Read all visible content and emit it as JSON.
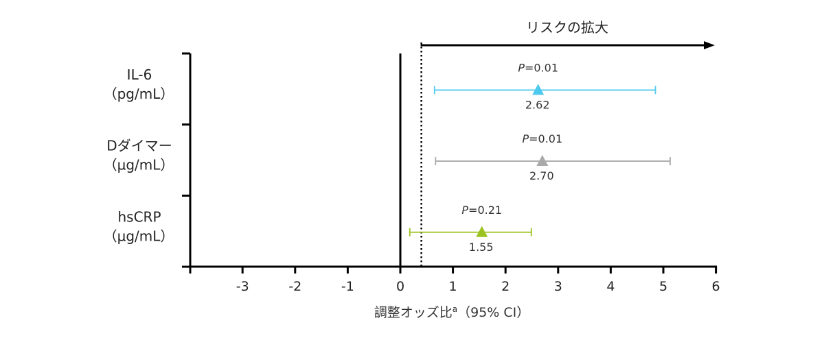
{
  "chart_data": {
    "type": "forest",
    "risk_label": "リスクの拡大",
    "xlabel": "調整オッズ比",
    "xlabel_superscript": "a",
    "xlabel_suffix": "（95% CI）",
    "xlim": [
      -4,
      6
    ],
    "xticks": [
      -3,
      -2,
      -1,
      0,
      1,
      2,
      3,
      4,
      5,
      6
    ],
    "xtick_labels": [
      "-3",
      "-2",
      "-1",
      "0",
      "1",
      "2",
      "3",
      "4",
      "5",
      "6"
    ],
    "reference_line_solid": 0,
    "reference_line_dotted": 0.4,
    "rows": [
      {
        "label_line1": "IL-6",
        "label_line2": "（pg/mL）",
        "value": 2.62,
        "value_label": "2.62",
        "ci_low": 0.65,
        "ci_high": 4.85,
        "p_label": "P",
        "p_value": "=0.01",
        "color": "#4dc8ee"
      },
      {
        "label_line1": "Dダイマー",
        "label_line2": "（µg/mL）",
        "value": 2.7,
        "value_label": "2.70",
        "ci_low": 0.67,
        "ci_high": 5.13,
        "p_label": "P",
        "p_value": "=0.01",
        "color": "#aaaaaa"
      },
      {
        "label_line1": "hsCRP",
        "label_line2": "（µg/mL）",
        "value": 1.55,
        "value_label": "1.55",
        "ci_low": 0.18,
        "ci_high": 2.49,
        "p_label": "P",
        "p_value": "=0.21",
        "color": "#9bc21e"
      }
    ]
  }
}
